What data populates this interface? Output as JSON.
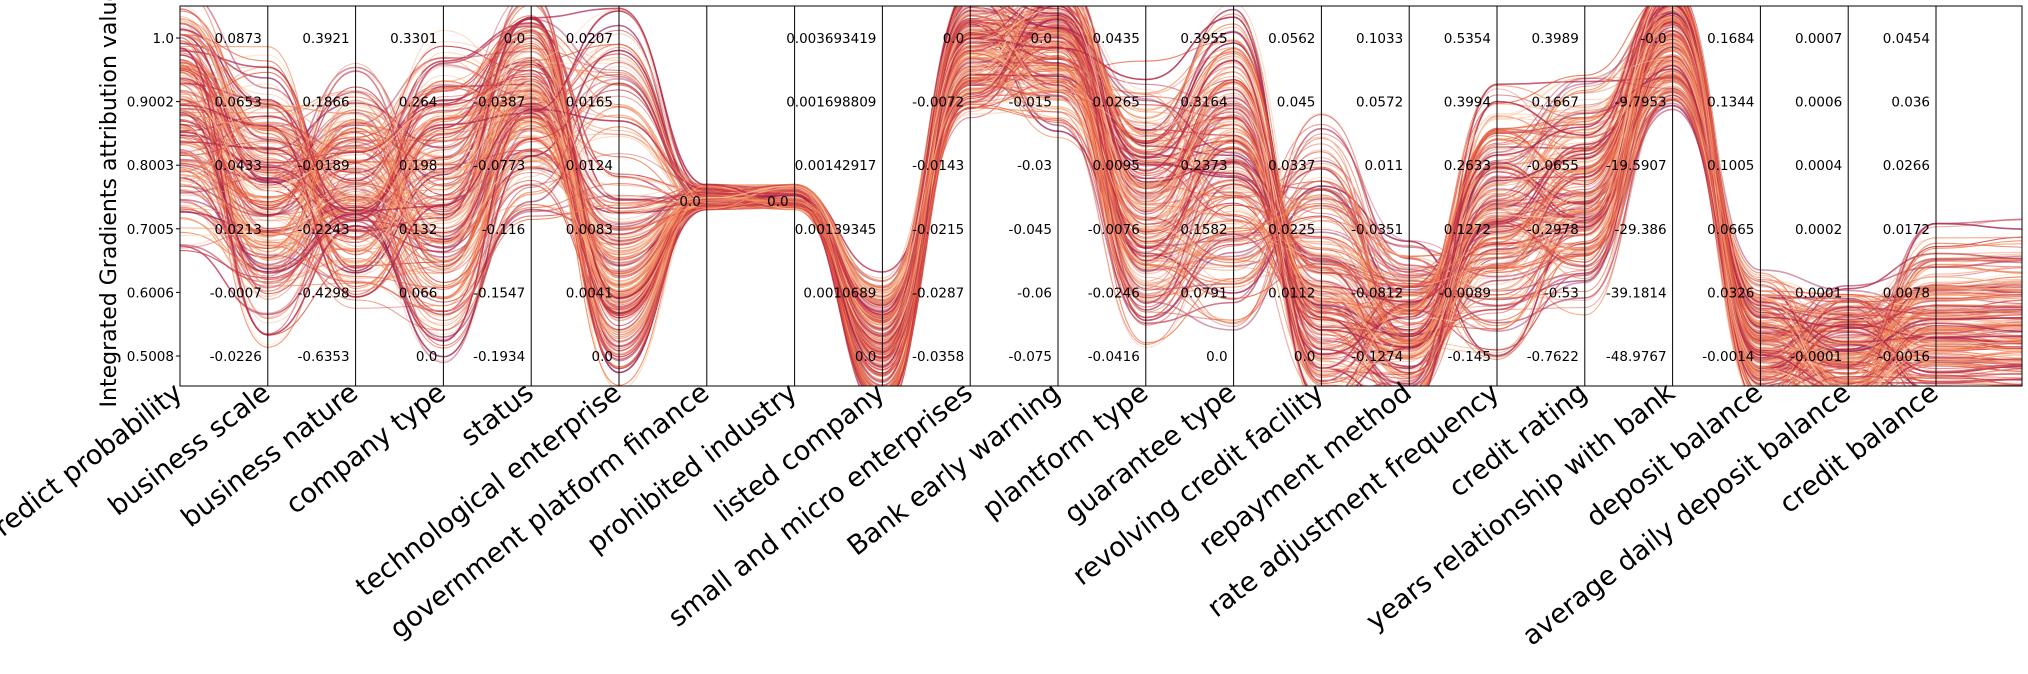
{
  "chart_data": {
    "type": "parallel-coordinates",
    "ylabel": "Integrated Gradients attribution values",
    "axes": [
      {
        "name": "predict probability",
        "ticks": [
          "1.0",
          "0.9002",
          "0.8003",
          "0.7005",
          "0.6006",
          "0.5008"
        ]
      },
      {
        "name": "business scale",
        "ticks": [
          "0.0873",
          "0.0653",
          "0.0433",
          "0.0213",
          "-0.0007",
          "-0.0226"
        ]
      },
      {
        "name": "business nature",
        "ticks": [
          "0.3921",
          "0.1866",
          "-0.0189",
          "-0.2243",
          "-0.4298",
          "-0.6353"
        ]
      },
      {
        "name": "company type",
        "ticks": [
          "0.3301",
          "0.264",
          "0.198",
          "0.132",
          "0.066",
          "0.0"
        ]
      },
      {
        "name": "status",
        "ticks": [
          "0.0",
          "-0.0387",
          "-0.0773",
          "-0.116",
          "-0.1547",
          "-0.1934"
        ]
      },
      {
        "name": "technological enterprise",
        "ticks": [
          "0.0207",
          "0.0165",
          "0.0124",
          "0.0083",
          "0.0041",
          "0.0"
        ]
      },
      {
        "name": "government platform finance",
        "ticks": [
          "0.0"
        ]
      },
      {
        "name": "prohibited industry",
        "ticks": [
          "0.0"
        ]
      },
      {
        "name": "listed company",
        "ticks": [
          "0.003693419",
          "0.001698809",
          "0.00142917",
          "0.00139345",
          "0.0010689",
          "0.0"
        ]
      },
      {
        "name": "small and micro enterprises",
        "ticks": [
          "0.0",
          "-0.0072",
          "-0.0143",
          "-0.0215",
          "-0.0287",
          "-0.0358"
        ]
      },
      {
        "name": "Bank early warning",
        "ticks": [
          "0.0",
          "-0.015",
          "-0.03",
          "-0.045",
          "-0.06",
          "-0.075"
        ]
      },
      {
        "name": "plantform type",
        "ticks": [
          "0.0435",
          "0.0265",
          "0.0095",
          "-0.0076",
          "-0.0246",
          "-0.0416"
        ]
      },
      {
        "name": "guarantee type",
        "ticks": [
          "0.3955",
          "0.3164",
          "0.2373",
          "0.1582",
          "0.0791",
          "0.0"
        ]
      },
      {
        "name": "revolving credit facility",
        "ticks": [
          "0.0562",
          "0.045",
          "0.0337",
          "0.0225",
          "0.0112",
          "0.0"
        ]
      },
      {
        "name": "repayment method",
        "ticks": [
          "0.1033",
          "0.0572",
          "0.011",
          "-0.0351",
          "-0.0812",
          "-0.1274"
        ]
      },
      {
        "name": "rate adjustment frequency",
        "ticks": [
          "0.5354",
          "0.3994",
          "0.2633",
          "0.1272",
          "-0.0089",
          "-0.145"
        ]
      },
      {
        "name": "credit rating",
        "ticks": [
          "0.3989",
          "0.1667",
          "-0.0655",
          "-0.2978",
          "-0.53",
          "-0.7622"
        ]
      },
      {
        "name": "years relationship with bank",
        "ticks": [
          "-0.0",
          "-9.7953",
          "-19.5907",
          "-29.386",
          "-39.1814",
          "-48.9767"
        ]
      },
      {
        "name": "deposit balance",
        "ticks": [
          "0.1684",
          "0.1344",
          "0.1005",
          "0.0665",
          "0.0326",
          "-0.0014"
        ]
      },
      {
        "name": "average daily deposit balance",
        "ticks": [
          "0.0007",
          "0.0006",
          "0.0004",
          "0.0002",
          "0.0001",
          "-0.0001"
        ]
      },
      {
        "name": "credit balance",
        "ticks": [
          "0.0454",
          "0.036",
          "0.0266",
          "0.0172",
          "0.0078",
          "-0.0016"
        ]
      }
    ],
    "representative_lines_normalized": [
      [
        1.0,
        0.72,
        0.42,
        0.62,
        0.98,
        0.06,
        0.5,
        0.5,
        0.0,
        1.0,
        1.0,
        0.62,
        0.88,
        0.0,
        0.0,
        0.55,
        0.62,
        1.0,
        0.0,
        0.0,
        0.0
      ],
      [
        0.9,
        0.55,
        0.5,
        0.7,
        0.95,
        0.1,
        0.5,
        0.5,
        0.02,
        0.98,
        1.05,
        0.55,
        0.8,
        0.05,
        0.02,
        0.48,
        0.58,
        0.98,
        0.02,
        0.02,
        0.05
      ],
      [
        0.8,
        0.48,
        0.6,
        0.78,
        0.9,
        0.15,
        0.5,
        0.5,
        0.03,
        0.97,
        1.02,
        0.45,
        0.7,
        0.12,
        0.05,
        0.4,
        0.5,
        1.0,
        0.03,
        0.01,
        0.08
      ],
      [
        0.7,
        0.62,
        0.68,
        0.52,
        0.85,
        0.2,
        0.5,
        0.5,
        0.05,
        0.95,
        0.98,
        0.35,
        0.55,
        0.25,
        0.08,
        0.35,
        0.45,
        1.0,
        0.05,
        0.02,
        0.12
      ],
      [
        0.6,
        0.4,
        0.75,
        0.45,
        0.78,
        0.28,
        0.5,
        0.5,
        0.08,
        0.92,
        0.95,
        0.3,
        0.45,
        0.35,
        0.1,
        0.3,
        0.4,
        0.96,
        0.08,
        0.03,
        0.15
      ],
      [
        0.55,
        0.35,
        0.58,
        0.35,
        0.7,
        0.32,
        0.5,
        0.5,
        0.1,
        0.9,
        0.9,
        0.25,
        0.35,
        0.45,
        0.15,
        0.25,
        0.35,
        0.95,
        0.1,
        0.04,
        0.2
      ],
      [
        0.85,
        0.2,
        0.45,
        0.15,
        0.65,
        0.85,
        0.5,
        0.5,
        0.0,
        1.0,
        1.0,
        0.7,
        0.6,
        0.05,
        0.03,
        0.62,
        0.7,
        1.0,
        0.02,
        0.02,
        0.04
      ],
      [
        0.95,
        0.8,
        0.35,
        0.6,
        0.92,
        0.92,
        0.5,
        0.5,
        0.01,
        1.0,
        0.97,
        0.78,
        0.95,
        0.02,
        0.0,
        0.7,
        0.75,
        1.02,
        0.01,
        0.03,
        0.06
      ],
      [
        0.5,
        0.3,
        0.3,
        0.25,
        0.6,
        0.5,
        0.5,
        0.5,
        0.06,
        0.93,
        0.85,
        0.2,
        0.25,
        0.6,
        0.2,
        0.15,
        0.3,
        0.94,
        0.12,
        0.05,
        0.25
      ],
      [
        0.75,
        0.6,
        0.52,
        0.85,
        0.88,
        0.4,
        0.5,
        0.5,
        0.04,
        0.96,
        1.0,
        0.5,
        0.65,
        0.18,
        0.06,
        0.45,
        0.55,
        0.99,
        0.04,
        0.02,
        0.1
      ]
    ]
  }
}
